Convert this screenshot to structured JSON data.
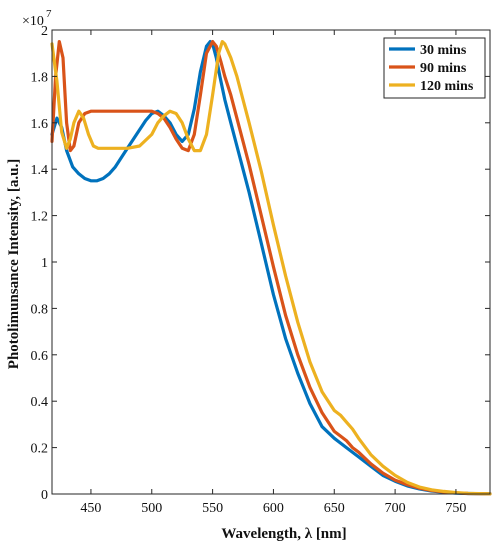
{
  "chart_data": {
    "type": "line",
    "xlabel": "Wavelength, λ [nm]",
    "ylabel": "Photolimunsance Intensity, [a.u.]",
    "y_multiplier_base": "×10",
    "y_multiplier_exponent": "7",
    "xlim": [
      418,
      778
    ],
    "ylim": [
      0,
      2.0
    ],
    "xticks": [
      450,
      500,
      550,
      600,
      650,
      700,
      750
    ],
    "yticks": [
      0,
      0.2,
      0.4,
      0.6,
      0.8,
      1.0,
      1.2,
      1.4,
      1.6,
      1.8,
      2.0
    ],
    "ytick_labels": [
      "0",
      "0.2",
      "0.4",
      "0.6",
      "0.8",
      "1",
      "1.2",
      "1.4",
      "1.6",
      "1.8",
      "2"
    ],
    "legend_position": "top-right",
    "grid": false,
    "series": [
      {
        "name": "30 mins",
        "color": "#0072BD",
        "x": [
          418,
          422,
          426,
          430,
          435,
          440,
          445,
          450,
          455,
          460,
          465,
          470,
          475,
          480,
          485,
          490,
          495,
          500,
          505,
          510,
          515,
          520,
          525,
          530,
          535,
          540,
          545,
          548,
          550,
          553,
          556,
          560,
          565,
          570,
          575,
          580,
          590,
          600,
          610,
          620,
          630,
          640,
          650,
          655,
          660,
          670,
          680,
          690,
          700,
          710,
          720,
          730,
          740,
          750,
          760,
          778
        ],
        "y": [
          1.55,
          1.62,
          1.58,
          1.48,
          1.41,
          1.38,
          1.36,
          1.35,
          1.35,
          1.36,
          1.38,
          1.41,
          1.45,
          1.49,
          1.53,
          1.57,
          1.61,
          1.64,
          1.65,
          1.63,
          1.6,
          1.55,
          1.52,
          1.55,
          1.66,
          1.82,
          1.93,
          1.95,
          1.94,
          1.88,
          1.8,
          1.7,
          1.6,
          1.5,
          1.4,
          1.3,
          1.08,
          0.86,
          0.67,
          0.52,
          0.39,
          0.29,
          0.24,
          0.22,
          0.2,
          0.16,
          0.12,
          0.08,
          0.055,
          0.035,
          0.022,
          0.013,
          0.008,
          0.004,
          0.002,
          0.001
        ]
      },
      {
        "name": "90 mins",
        "color": "#D95319",
        "x": [
          418,
          421,
          424,
          427,
          430,
          433,
          436,
          440,
          445,
          450,
          455,
          460,
          470,
          480,
          490,
          500,
          505,
          510,
          515,
          520,
          525,
          530,
          535,
          540,
          545,
          550,
          553,
          557,
          560,
          565,
          570,
          575,
          580,
          585,
          590,
          600,
          610,
          620,
          630,
          640,
          650,
          655,
          660,
          665,
          670,
          680,
          690,
          700,
          710,
          720,
          730,
          740,
          750,
          760,
          778
        ],
        "y": [
          1.52,
          1.8,
          1.95,
          1.88,
          1.6,
          1.48,
          1.5,
          1.6,
          1.64,
          1.65,
          1.65,
          1.65,
          1.65,
          1.65,
          1.65,
          1.65,
          1.64,
          1.62,
          1.58,
          1.53,
          1.49,
          1.48,
          1.55,
          1.72,
          1.9,
          1.95,
          1.93,
          1.86,
          1.8,
          1.72,
          1.62,
          1.52,
          1.42,
          1.31,
          1.2,
          0.98,
          0.77,
          0.6,
          0.46,
          0.35,
          0.27,
          0.25,
          0.23,
          0.2,
          0.18,
          0.13,
          0.09,
          0.06,
          0.04,
          0.025,
          0.015,
          0.009,
          0.005,
          0.002,
          0.001
        ]
      },
      {
        "name": "120 mins",
        "color": "#EDB120",
        "x": [
          418,
          422,
          426,
          430,
          433,
          436,
          440,
          444,
          448,
          452,
          456,
          460,
          470,
          480,
          490,
          500,
          505,
          510,
          515,
          520,
          525,
          530,
          535,
          540,
          545,
          550,
          555,
          558,
          560,
          565,
          570,
          575,
          580,
          590,
          600,
          610,
          620,
          630,
          640,
          650,
          655,
          660,
          665,
          670,
          680,
          690,
          700,
          710,
          720,
          730,
          740,
          750,
          760,
          778
        ],
        "y": [
          1.94,
          1.78,
          1.56,
          1.49,
          1.53,
          1.6,
          1.65,
          1.62,
          1.55,
          1.5,
          1.49,
          1.49,
          1.49,
          1.49,
          1.5,
          1.55,
          1.6,
          1.63,
          1.65,
          1.64,
          1.6,
          1.53,
          1.48,
          1.48,
          1.55,
          1.72,
          1.9,
          1.95,
          1.94,
          1.88,
          1.8,
          1.7,
          1.6,
          1.39,
          1.16,
          0.94,
          0.74,
          0.57,
          0.44,
          0.36,
          0.34,
          0.31,
          0.28,
          0.24,
          0.17,
          0.12,
          0.08,
          0.05,
          0.03,
          0.018,
          0.011,
          0.006,
          0.003,
          0.001
        ]
      }
    ]
  }
}
